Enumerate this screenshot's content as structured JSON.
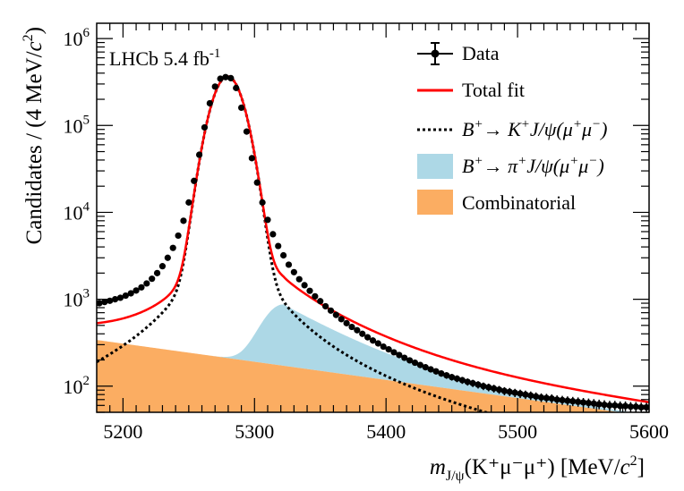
{
  "chart_data": {
    "type": "line",
    "y_scale": "log",
    "xlabel_parts": {
      "main": "m",
      "sub": "J/ψ",
      "rest": "(K⁺μ⁻μ⁺) [MeV/",
      "c": "c",
      "exp": "2",
      "close": "]"
    },
    "ylabel_parts": {
      "main": "Candidates / (4 MeV/",
      "c": "c",
      "exp": "2",
      "close": ")"
    },
    "xlim": [
      5180,
      5600
    ],
    "ylim": [
      50,
      1500000
    ],
    "x_ticks": [
      5200,
      5300,
      5400,
      5500,
      5600
    ],
    "x_tick_labels": [
      "5200",
      "5300",
      "5400",
      "5500",
      "5600"
    ],
    "y_ticks": [
      {
        "value": 100,
        "base": "10",
        "exp": "2"
      },
      {
        "value": 1000,
        "base": "10",
        "exp": "3"
      },
      {
        "value": 10000,
        "base": "10",
        "exp": "4"
      },
      {
        "value": 100000,
        "base": "10",
        "exp": "5"
      },
      {
        "value": 1000000,
        "base": "10",
        "exp": "6"
      }
    ],
    "annotation": {
      "text": "LHCb 5.4 fb",
      "sup": "-1"
    },
    "legend": {
      "position": "top-right",
      "entries": [
        {
          "key": "data",
          "label": "Data"
        },
        {
          "key": "total",
          "label": "Total fit"
        },
        {
          "key": "signal",
          "label_pre": "B",
          "label_sup": "+",
          "label_post": "→ K",
          "label_sup2": "+",
          "label_tail": "J/ψ(μ",
          "label_sup3": "+",
          "label_mid": "μ",
          "label_sup4": "−",
          "label_end": ")"
        },
        {
          "key": "misid",
          "label_pre": "B",
          "label_sup": "+",
          "label_post": "→  π",
          "label_sup2": "+",
          "label_tail": "J/ψ(μ",
          "label_sup3": "+",
          "label_mid": "μ",
          "label_sup4": "−",
          "label_end": ")"
        },
        {
          "key": "comb",
          "label": "Combinatorial"
        }
      ]
    },
    "model": {
      "signal": {
        "mean": 5279.5,
        "amplitude": 360000,
        "core_sigma": 10,
        "core_frac": 0.985,
        "tail_gamma": 18,
        "tail_amp": 6000
      },
      "misid": {
        "mean": 5322,
        "sigma": 14,
        "amplitude": 700,
        "tail_decay": 45
      },
      "comb": {
        "value_at_5180": 340,
        "value_at_5600": 45
      }
    },
    "series": [
      {
        "name": "Data",
        "x": [
          5182,
          5186,
          5190,
          5194,
          5198,
          5202,
          5206,
          5210,
          5214,
          5218,
          5222,
          5226,
          5230,
          5234,
          5238,
          5242,
          5246,
          5250,
          5254,
          5258,
          5262,
          5266,
          5270,
          5274,
          5278,
          5282,
          5286,
          5290,
          5294,
          5298,
          5302,
          5306,
          5310,
          5314,
          5318,
          5322,
          5326,
          5330,
          5334,
          5338,
          5342,
          5346,
          5350,
          5354,
          5358,
          5362,
          5366,
          5370,
          5374,
          5378,
          5382,
          5386,
          5390,
          5394,
          5398,
          5402,
          5406,
          5410,
          5414,
          5418,
          5422,
          5426,
          5430,
          5434,
          5438,
          5442,
          5446,
          5450,
          5454,
          5458,
          5462,
          5466,
          5470,
          5474,
          5478,
          5482,
          5486,
          5490,
          5494,
          5498,
          5502,
          5506,
          5510,
          5514,
          5518,
          5522,
          5526,
          5530,
          5534,
          5538,
          5542,
          5546,
          5550,
          5554,
          5558,
          5562,
          5566,
          5570,
          5574,
          5578,
          5582,
          5586,
          5590,
          5594,
          5598
        ],
        "y": [
          900,
          930,
          960,
          1000,
          1040,
          1100,
          1170,
          1260,
          1370,
          1520,
          1720,
          2000,
          2400,
          3000,
          3900,
          5400,
          8000,
          13000,
          23000,
          46000,
          95000,
          180000,
          280000,
          345000,
          360000,
          350000,
          270000,
          160000,
          85000,
          42000,
          22000,
          13000,
          8200,
          5600,
          4100,
          3200,
          2500,
          2050,
          1700,
          1450,
          1250,
          1080,
          950,
          830,
          740,
          660,
          590,
          530,
          480,
          440,
          400,
          365,
          335,
          310,
          285,
          265,
          245,
          228,
          212,
          198,
          186,
          175,
          165,
          156,
          148,
          140,
          133,
          127,
          122,
          117,
          112,
          108,
          104,
          100,
          97,
          94,
          91,
          88,
          86,
          84,
          82,
          80,
          78,
          76,
          74,
          73,
          72,
          70,
          69,
          68,
          67,
          66,
          65,
          64,
          63,
          62,
          61,
          60,
          60,
          59,
          59,
          58,
          58,
          57,
          57
        ]
      }
    ]
  },
  "colors": {
    "data": "#000000",
    "total_fit": "#ff0000",
    "signal": "#000000",
    "misid": "#add8e6",
    "combinatorial": "#fbad62"
  }
}
